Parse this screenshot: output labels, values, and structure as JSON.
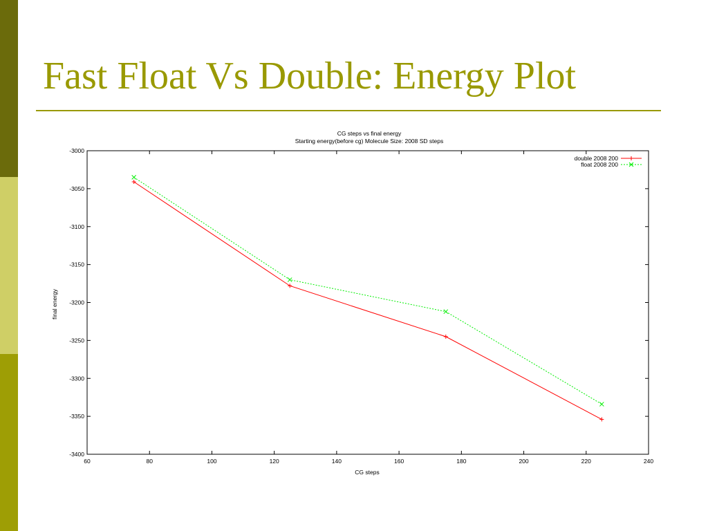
{
  "slide": {
    "title": "Fast Float Vs Double: Energy Plot"
  },
  "colors": {
    "accent": "#999900",
    "sidebar_dark": "#6b6b0b",
    "sidebar_light": "#cfcf66",
    "sidebar_mid": "#9e9e05"
  },
  "chart_data": {
    "type": "line",
    "title": "CG steps vs final energy",
    "subtitle": "Starting energy(before cg) Molecule Size: 2008 SD steps",
    "xlabel": "CG steps",
    "ylabel": "final energy",
    "xlim": [
      60,
      240
    ],
    "ylim": [
      -3400,
      -3000
    ],
    "xticks": [
      60,
      80,
      100,
      120,
      140,
      160,
      180,
      200,
      220,
      240
    ],
    "yticks": [
      -3000,
      -3050,
      -3100,
      -3150,
      -3200,
      -3250,
      -3300,
      -3350,
      -3400
    ],
    "grid": false,
    "legend_position": "top-right",
    "series": [
      {
        "name": "double 2008 200",
        "color": "#ff0000",
        "marker": "plus",
        "dashed": false,
        "x": [
          75,
          125,
          175,
          225
        ],
        "y": [
          -3041,
          -3178,
          -3245,
          -3354
        ]
      },
      {
        "name": "float 2008 200",
        "color": "#00ee00",
        "marker": "cross",
        "dashed": true,
        "x": [
          75,
          125,
          175,
          225
        ],
        "y": [
          -3035,
          -3170,
          -3212,
          -3334
        ]
      }
    ]
  }
}
